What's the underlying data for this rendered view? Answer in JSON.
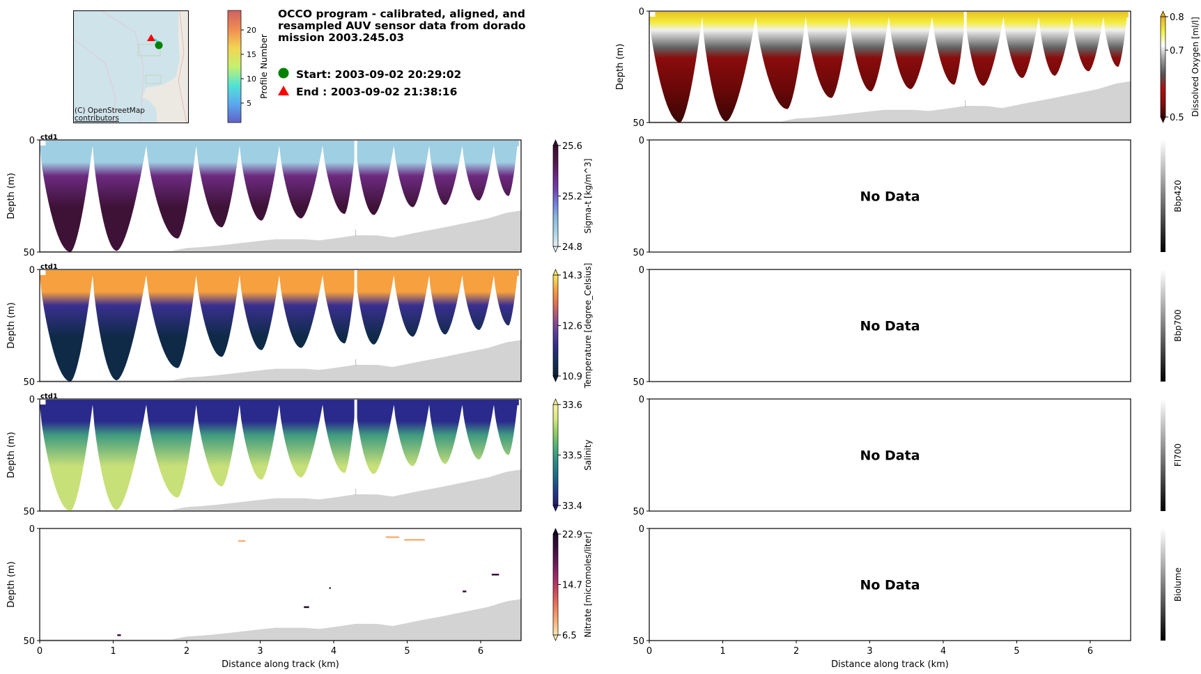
{
  "header": {
    "title_lines": [
      "OCCO program - calibrated, aligned, and",
      "resampled AUV sensor data from dorado",
      "mission 2003.245.03"
    ],
    "start_label": "Start: 2003-09-02 20:29:02",
    "end_label": "End  : 2003-09-02 21:38:16",
    "start_marker": {
      "shape": "circle",
      "color": "#008000"
    },
    "end_marker": {
      "shape": "triangle",
      "color": "#ff0000"
    }
  },
  "map": {
    "credit_line1": "(C) OpenStreetMap",
    "credit_line2": "contributors",
    "profile_colorbar": {
      "label": "Profile Number",
      "ticks": [
        "5",
        "10",
        "15",
        "20"
      ],
      "tick_values": [
        5,
        10,
        15,
        20
      ],
      "range": [
        1,
        24
      ]
    }
  },
  "chart_data": [
    {
      "id": "oxygen",
      "type": "heatmap",
      "column": "right",
      "row": 0,
      "title": "",
      "xlabel": "",
      "ylabel": "Depth (m)",
      "xlim": [
        0,
        6.55
      ],
      "ylim": [
        50,
        0
      ],
      "yticks": [
        "0",
        "50"
      ],
      "xticks": [],
      "colorbar": {
        "label": "Dissolved Oxygen [ml/l]",
        "ticks": [
          "0.8",
          "0.7",
          "0.5"
        ],
        "tick_values": [
          0.8,
          0.7,
          0.5
        ],
        "range": [
          0.5,
          0.8
        ],
        "stops": [
          "#3a0505",
          "#8b0a0a",
          "#b01010",
          "#555555",
          "#9a9a9a",
          "#ffffff",
          "#f0f040",
          "#e8b020"
        ]
      },
      "has_data": true,
      "sensor_tag": ""
    },
    {
      "id": "sigma_t",
      "type": "heatmap",
      "column": "left",
      "row": 1,
      "ylabel": "Depth (m)",
      "xlim": [
        0,
        6.55
      ],
      "ylim": [
        50,
        0
      ],
      "yticks": [
        "0",
        "50"
      ],
      "xticks": [],
      "colorbar": {
        "label": "Sigma-t [kg/m^3]",
        "ticks": [
          "25.6",
          "25.2",
          "24.8"
        ],
        "tick_values": [
          25.6,
          25.2,
          24.8
        ],
        "range": [
          24.8,
          25.6
        ],
        "stops": [
          "#e6f0f4",
          "#a8d4e6",
          "#8ab8e0",
          "#6f7ee0",
          "#7240b0",
          "#6a2580",
          "#501545",
          "#3a0d2e"
        ]
      },
      "surface_color": "#9fcfe3",
      "mid_color": "#6c2a80",
      "deep_color": "#3e1236",
      "has_data": true,
      "sensor_tag": "ctd1"
    },
    {
      "id": "temperature",
      "type": "heatmap",
      "column": "left",
      "row": 2,
      "ylabel": "Depth (m)",
      "xlim": [
        0,
        6.55
      ],
      "ylim": [
        50,
        0
      ],
      "yticks": [
        "0",
        "50"
      ],
      "xticks": [],
      "colorbar": {
        "label": "Temperature [degree_Celsius]",
        "ticks": [
          "14.3",
          "12.6",
          "10.9"
        ],
        "tick_values": [
          14.3,
          12.6,
          10.9
        ],
        "range": [
          10.9,
          14.3
        ],
        "stops": [
          "#0b2035",
          "#13305a",
          "#2d2d8a",
          "#5a3f9a",
          "#9a4f8a",
          "#e07050",
          "#f7a040",
          "#f7e860"
        ]
      },
      "surface_color": "#f6a03f",
      "mid_color": "#3a2f90",
      "deep_color": "#0f2a47",
      "has_data": true,
      "sensor_tag": "ctd1"
    },
    {
      "id": "salinity",
      "type": "heatmap",
      "column": "left",
      "row": 3,
      "ylabel": "Depth (m)",
      "xlim": [
        0,
        6.55
      ],
      "ylim": [
        50,
        0
      ],
      "yticks": [
        "0",
        "50"
      ],
      "xticks": [],
      "colorbar": {
        "label": "Salinity",
        "ticks": [
          "33.6",
          "33.5",
          "33.4"
        ],
        "tick_values": [
          33.6,
          33.5,
          33.4
        ],
        "range": [
          33.4,
          33.6
        ],
        "stops": [
          "#231a6a",
          "#1e3e8a",
          "#1a6a8a",
          "#2a8a88",
          "#4ab07a",
          "#8acd60",
          "#d6e880",
          "#fbf0a0"
        ]
      },
      "surface_color": "#2a2a8c",
      "mid_color": "#3e9a80",
      "deep_color": "#c8e078",
      "has_data": true,
      "sensor_tag": "ctd1"
    },
    {
      "id": "nitrate",
      "type": "scatter",
      "column": "left",
      "row": 4,
      "ylabel": "Depth (m)",
      "xlabel": "Distance along track (km)",
      "xlim": [
        0,
        6.55
      ],
      "ylim": [
        50,
        0
      ],
      "yticks": [
        "0",
        "50"
      ],
      "xticks": [
        "0",
        "1",
        "2",
        "3",
        "4",
        "5",
        "6"
      ],
      "colorbar": {
        "label": "Nitrate [micromoles/liter]",
        "ticks": [
          "22.9",
          "14.7",
          "6.5"
        ],
        "tick_values": [
          22.9,
          14.7,
          6.5
        ],
        "range": [
          6.5,
          22.9
        ],
        "stops": [
          "#fce8b0",
          "#f8b078",
          "#ee7a5a",
          "#d04a5a",
          "#a02a6a",
          "#6a1a5a",
          "#3a0f3e",
          "#1a0a2a"
        ]
      },
      "points": [
        {
          "x": 2.75,
          "depth": 5.5,
          "value": 8.5,
          "width_km": 0.1
        },
        {
          "x": 4.8,
          "depth": 3.8,
          "value": 8.5,
          "width_km": 0.18
        },
        {
          "x": 5.1,
          "depth": 5.0,
          "value": 9.0,
          "width_km": 0.28
        },
        {
          "x": 6.2,
          "depth": 20.5,
          "value": 21.0,
          "width_km": 0.1
        },
        {
          "x": 5.78,
          "depth": 28.0,
          "value": 21.5,
          "width_km": 0.05
        },
        {
          "x": 3.95,
          "depth": 26.5,
          "value": 22.0,
          "width_km": 0.02
        },
        {
          "x": 3.63,
          "depth": 35.0,
          "value": 22.5,
          "width_km": 0.07
        },
        {
          "x": 1.08,
          "depth": 47.5,
          "value": 20.0,
          "width_km": 0.05
        }
      ],
      "has_data": true,
      "sensor_tag": ""
    },
    {
      "id": "bbp420",
      "type": "heatmap",
      "column": "right",
      "row": 1,
      "ylabel": "",
      "xlim": [
        0,
        6.55
      ],
      "ylim": [
        50,
        0
      ],
      "yticks": [
        "0",
        "50"
      ],
      "xticks": [],
      "colorbar": {
        "label": "Bbp420",
        "ticks": [],
        "tick_values": [],
        "range": [
          0,
          1
        ],
        "stops": [
          "#000000",
          "#ffffff"
        ]
      },
      "has_data": false,
      "no_data_text": "No Data"
    },
    {
      "id": "bbp700",
      "type": "heatmap",
      "column": "right",
      "row": 2,
      "ylabel": "",
      "xlim": [
        0,
        6.55
      ],
      "ylim": [
        50,
        0
      ],
      "yticks": [
        "0",
        "50"
      ],
      "xticks": [],
      "colorbar": {
        "label": "Bbp700",
        "ticks": [],
        "tick_values": [],
        "range": [
          0,
          1
        ],
        "stops": [
          "#000000",
          "#ffffff"
        ]
      },
      "has_data": false,
      "no_data_text": "No Data"
    },
    {
      "id": "fl700",
      "type": "heatmap",
      "column": "right",
      "row": 3,
      "ylabel": "",
      "xlim": [
        0,
        6.55
      ],
      "ylim": [
        50,
        0
      ],
      "yticks": [
        "0",
        "50"
      ],
      "xticks": [],
      "colorbar": {
        "label": "Fl700",
        "ticks": [],
        "tick_values": [],
        "range": [
          0,
          1
        ],
        "stops": [
          "#000000",
          "#ffffff"
        ]
      },
      "has_data": false,
      "no_data_text": "No Data"
    },
    {
      "id": "biolume",
      "type": "heatmap",
      "column": "right",
      "row": 4,
      "ylabel": "",
      "xlabel": "Distance along track (km)",
      "xlim": [
        0,
        6.55
      ],
      "ylim": [
        50,
        0
      ],
      "yticks": [
        "0",
        "50"
      ],
      "xticks": [
        "0",
        "1",
        "2",
        "3",
        "4",
        "5",
        "6"
      ],
      "colorbar": {
        "label": "Biolume",
        "ticks": [],
        "tick_values": [],
        "range": [
          0,
          1
        ],
        "stops": [
          "#000000",
          "#ffffff"
        ]
      },
      "has_data": false,
      "no_data_text": "No Data"
    }
  ],
  "track": {
    "yo_turn_points_km": [
      0.0,
      0.72,
      1.45,
      2.13,
      2.72,
      3.26,
      3.85,
      4.3,
      4.82,
      5.3,
      5.75,
      6.18,
      6.5
    ],
    "yo_bottom_points": [
      {
        "x": 0.42,
        "depth": 50
      },
      {
        "x": 1.05,
        "depth": 49.5
      },
      {
        "x": 1.88,
        "depth": 44
      },
      {
        "x": 2.48,
        "depth": 39
      },
      {
        "x": 3.02,
        "depth": 36
      },
      {
        "x": 3.56,
        "depth": 35
      },
      {
        "x": 4.15,
        "depth": 33
      },
      {
        "x": 4.55,
        "depth": 33.5
      },
      {
        "x": 5.08,
        "depth": 30
      },
      {
        "x": 5.52,
        "depth": 29
      },
      {
        "x": 5.98,
        "depth": 27
      },
      {
        "x": 6.38,
        "depth": 25
      }
    ],
    "turn_top_depth": 2.5,
    "gap_km": 4.3,
    "bathymetry": [
      {
        "x": 0.0,
        "depth": 49.5
      },
      {
        "x": 1.8,
        "depth": 49.5
      },
      {
        "x": 1.9,
        "depth": 48.8
      },
      {
        "x": 2.0,
        "depth": 48.2
      },
      {
        "x": 2.2,
        "depth": 47.8
      },
      {
        "x": 2.4,
        "depth": 47.2
      },
      {
        "x": 2.6,
        "depth": 46.5
      },
      {
        "x": 3.0,
        "depth": 45.0
      },
      {
        "x": 3.2,
        "depth": 44.3
      },
      {
        "x": 3.6,
        "depth": 44.3
      },
      {
        "x": 3.8,
        "depth": 44.8
      },
      {
        "x": 4.0,
        "depth": 44.0
      },
      {
        "x": 4.3,
        "depth": 42.5
      },
      {
        "x": 4.6,
        "depth": 42.6
      },
      {
        "x": 4.8,
        "depth": 43.5
      },
      {
        "x": 5.1,
        "depth": 41.5
      },
      {
        "x": 5.5,
        "depth": 39.0
      },
      {
        "x": 5.8,
        "depth": 37.0
      },
      {
        "x": 6.1,
        "depth": 35.0
      },
      {
        "x": 6.35,
        "depth": 32.5
      },
      {
        "x": 6.55,
        "depth": 31.5
      }
    ],
    "bathymetry_color": "#d3d3d3"
  }
}
